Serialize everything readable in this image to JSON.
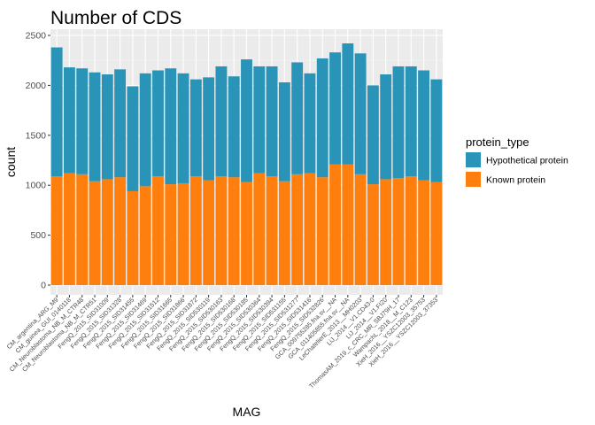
{
  "chart_data": {
    "type": "bar",
    "stacked": true,
    "title": "Number of CDS",
    "xlabel": "MAG",
    "ylabel": "count",
    "ylim": [
      0,
      2500
    ],
    "yticks": [
      0,
      500,
      1000,
      1500,
      2000,
      2500
    ],
    "grid": true,
    "legend_position": "right",
    "legend_title": "protein_type",
    "categories": [
      "CM_argentina_ARG_M9",
      "CM_guinea_GUI_0140118",
      "CM_Neuroblastoma_NB_M_CTR48",
      "CM_Neuroblastoma_NB_M_CTR51",
      "FengQ_2015_SID31009",
      "FengQ_2015_SID31328",
      "FengQ_2015_SID31455",
      "FengQ_2015_SID31469",
      "FengQ_2015_SID31512",
      "FengQ_2015_SID31665",
      "FengQ_2015_SID31866",
      "FengQ_2015_SID31872",
      "FengQ_2015_SID530119",
      "FengQ_2015_SID530163",
      "FengQ_2015_SID530168",
      "FengQ_2015_SID530185",
      "FengQ_2015_SID530364",
      "FengQ_2015_SID530394",
      "FengQ_2015_SID531155",
      "FengQ_2015_SID531277",
      "FengQ_2015_SID531416",
      "FengQ_2015_SID532826",
      "GCA_009755285.fna.sv__NA",
      "GCA_011405855.fna.sv__NA",
      "LeChatelierE_2013__MH0203",
      "LiJ_2014__V1.CD43-0",
      "LiJ_2014__V1.FI20",
      "ThomasAM_2019_c_CRC_MR_SBJ79H_17",
      "WampachL_2018__M_C123",
      "XieH_2016__YSZC12003_35753",
      "XieH_2016__YSZC12003_37353"
    ],
    "series": [
      {
        "name": "Known protein",
        "color": "#ff7f0e",
        "values": [
          1090,
          1120,
          1110,
          1040,
          1060,
          1080,
          940,
          990,
          1090,
          1010,
          1020,
          1090,
          1050,
          1090,
          1080,
          1030,
          1120,
          1090,
          1040,
          1110,
          1120,
          1080,
          1210,
          1210,
          1110,
          1010,
          1060,
          1070,
          1090,
          1050,
          1030
        ]
      },
      {
        "name": "Hypothetical protein",
        "color": "#2a93b8",
        "values": [
          1290,
          1060,
          1060,
          1090,
          1050,
          1080,
          1050,
          1130,
          1060,
          1160,
          1100,
          970,
          1030,
          1100,
          1010,
          1230,
          1070,
          1100,
          990,
          1120,
          1000,
          1190,
          1120,
          1210,
          1210,
          990,
          1050,
          1120,
          1100,
          1100,
          1030
        ]
      }
    ]
  },
  "legend_order": [
    "Hypothetical protein",
    "Known protein"
  ],
  "colors": {
    "panel_bg": "#ebebeb",
    "grid_major": "#ffffff",
    "grid_minor": "#f4f4f4"
  }
}
